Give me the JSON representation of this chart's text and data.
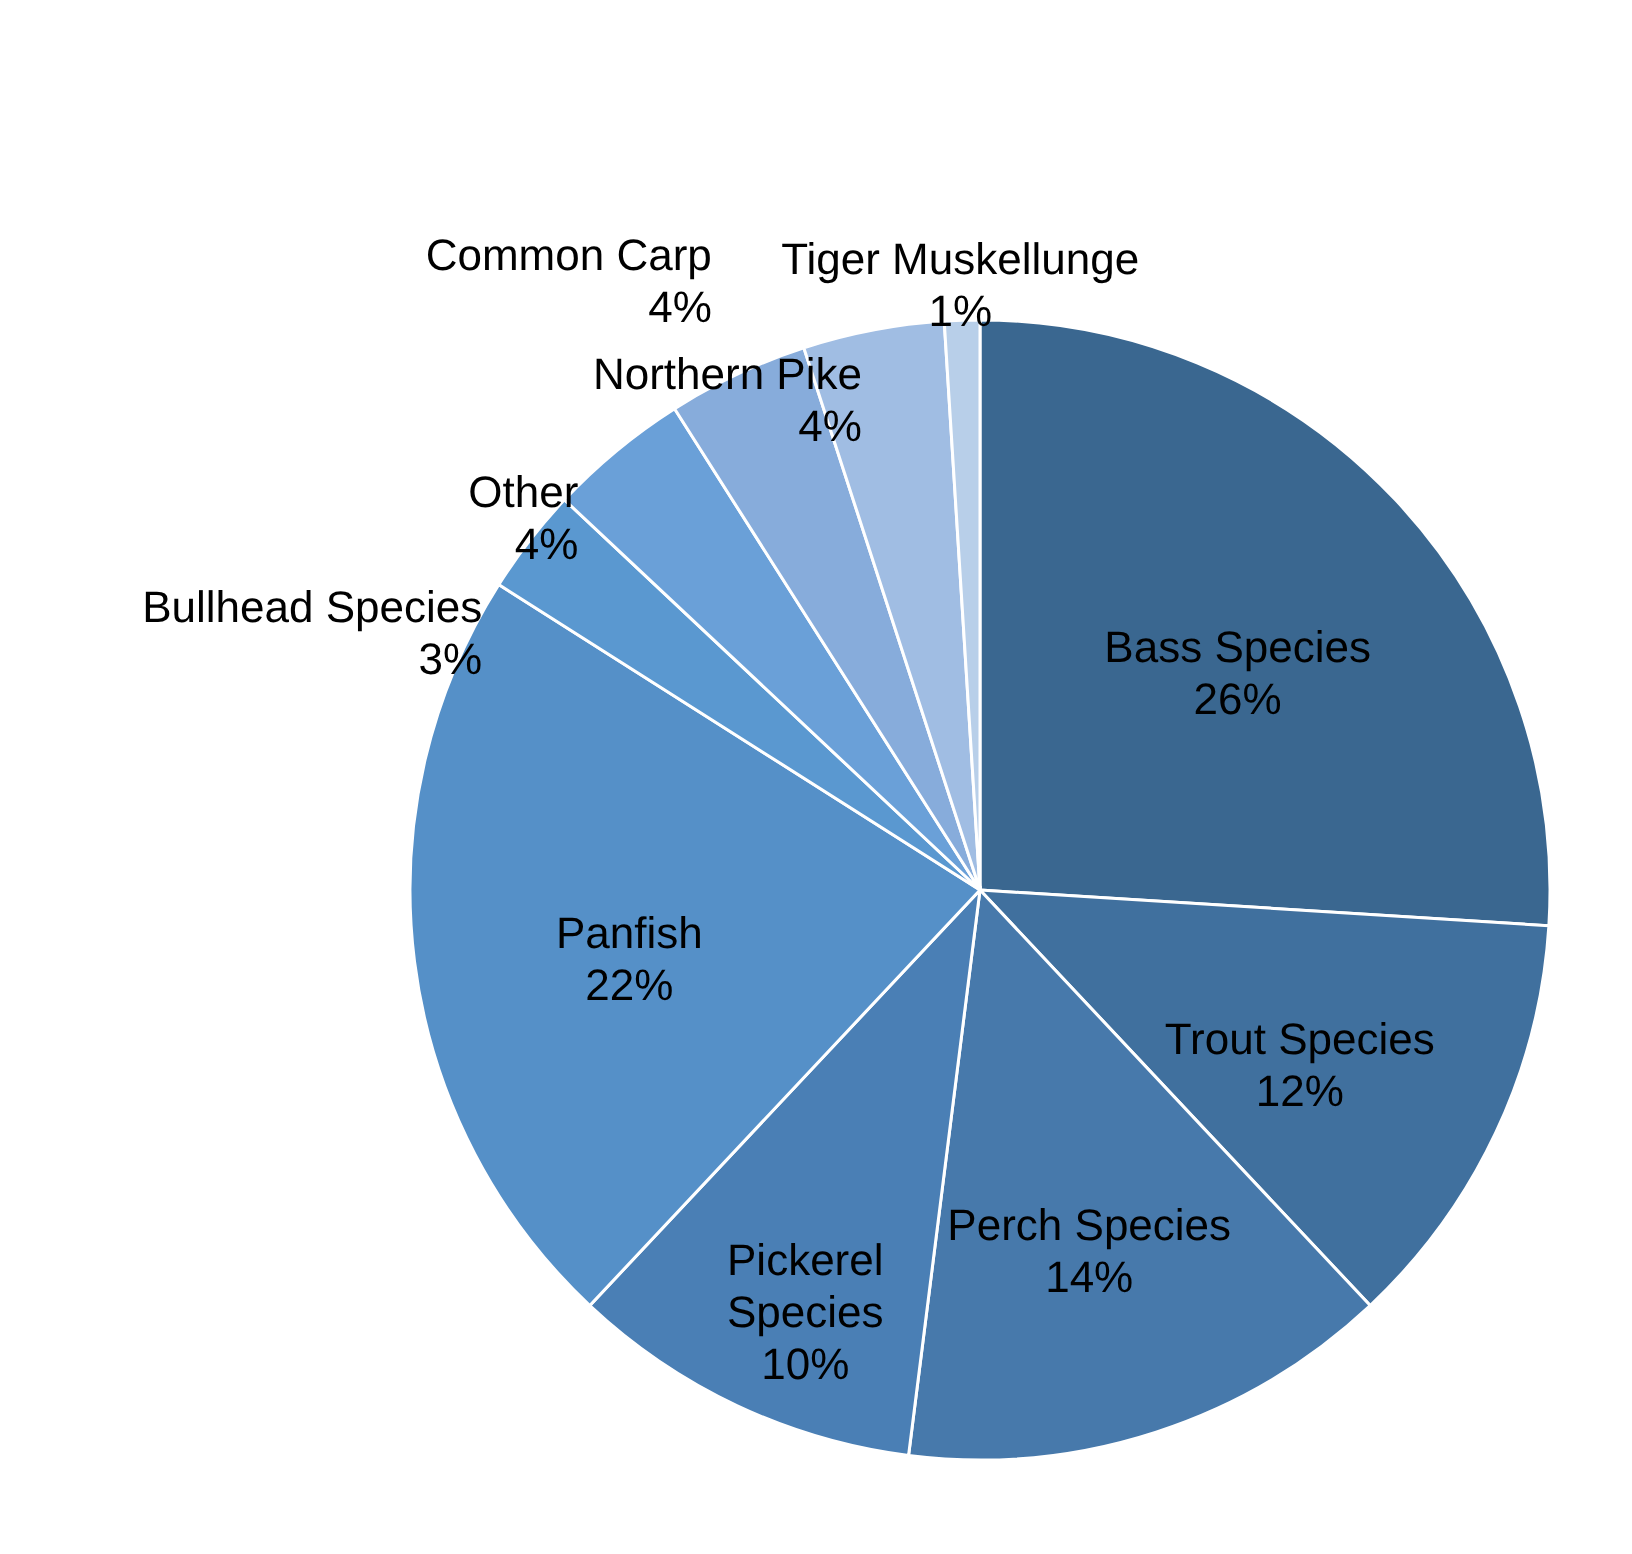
{
  "chart_data": {
    "type": "pie",
    "categories": [
      "Bass Species",
      "Trout Species",
      "Perch Species",
      "Pickerel Species",
      "Panfish",
      "Bullhead Species",
      "Other",
      "Common Carp",
      "Northern Pike",
      "Tiger Muskellunge"
    ],
    "values": [
      26,
      12,
      14,
      10,
      22,
      3,
      4,
      4,
      4,
      1
    ],
    "value_labels": [
      "26%",
      "12%",
      "14%",
      "10%",
      "22%",
      "3%",
      "4%",
      "4%",
      "4%",
      "1%"
    ],
    "colors": [
      "#3a6790",
      "#40709e",
      "#4779ab",
      "#4a7fb5",
      "#5590c8",
      "#5a98d0",
      "#6aa0d8",
      "#87acdb",
      "#a0bde3",
      "#b8cfe9"
    ]
  }
}
